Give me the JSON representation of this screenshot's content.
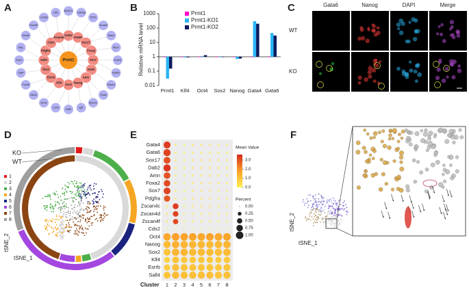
{
  "panel_labels": [
    "A",
    "B",
    "C",
    "D",
    "E",
    "F"
  ],
  "network": {
    "center": "Prmt1",
    "inner": [
      "Gata4",
      "Gata6",
      "Sox17",
      "Foxa2",
      "Sox7",
      "Dab2",
      "Amn",
      "Nanog",
      "Sox2",
      "Klf4",
      "Esrrb",
      "Tbx3",
      "Sall4",
      "Pdgfra",
      "Cdx2",
      "Zscan4c"
    ],
    "outer": [
      "Bcl2l11",
      "Cdk4ap",
      "Tcf7l1",
      "Smad4",
      "Tead1",
      "Mycn",
      "Kat2a",
      "Apbb2",
      "Notch1",
      "Chd8",
      "Ppp2r1",
      "Igf1",
      "Gdf3",
      "Ccnk",
      "Grnl2",
      "Med1",
      "Foxd3",
      "Fgf4",
      "Ezh2",
      "Myc",
      "Jarid2",
      "Dnmt3l",
      "Lin28a",
      "Utf1"
    ],
    "colors": {
      "center": "#f7941d",
      "inner": "#f28b82",
      "outer": "#a3a3f0"
    }
  },
  "chart_data": {
    "type": "bar",
    "ylabel": "Relative mRNA level",
    "categories": [
      "Prmt1",
      "Klf4",
      "Oct4",
      "Sox2",
      "Nanog",
      "Gata4",
      "Gata6"
    ],
    "category_colors": [
      "#2ca02c",
      "#222222",
      "#222222",
      "#222222",
      "#222222",
      "#e53935",
      "#e53935"
    ],
    "series": [
      {
        "name": "Prmt1",
        "color": "#ff00cc",
        "values": [
          1,
          1,
          1,
          1,
          1,
          1,
          1
        ]
      },
      {
        "name": "Prmt1-KO1",
        "color": "#29b6f6",
        "values": [
          0.03,
          0.9,
          1.1,
          1.0,
          0.7,
          300,
          45
        ]
      },
      {
        "name": "Prmt1-KO2",
        "color": "#0d1b5e",
        "values": [
          0.15,
          0.9,
          1.3,
          1.0,
          0.75,
          200,
          30
        ]
      }
    ],
    "ylim": [
      0.01,
      1000
    ],
    "yticks": [
      0.01,
      0.1,
      1,
      10,
      100,
      1000
    ],
    "log": true,
    "legend": "top-left"
  },
  "microscopy": {
    "channels": [
      {
        "name": "Gata6",
        "color": "#2ecc40"
      },
      {
        "name": "Nanog",
        "color": "#e53935"
      },
      {
        "name": "DAPI",
        "color": "#29a8e0"
      },
      {
        "name": "Merge",
        "color": "#b04ad0"
      }
    ],
    "rows": [
      "WT",
      "KO"
    ]
  },
  "tsne_d": {
    "clusters": [
      "1",
      "2",
      "3",
      "4",
      "5",
      "6",
      "7",
      "8"
    ],
    "cluster_colors": [
      "#e31a1c",
      "#d9d9d9",
      "#4daf4a",
      "#f5a623",
      "#1a237e",
      "#a347e0",
      "#8b4513",
      "#9e9e9e"
    ],
    "rings": [
      {
        "name": "KO",
        "fractions": [
          0.02,
          0.03,
          0.12,
          0.12,
          0.1,
          0.3,
          0.0,
          0.31
        ]
      },
      {
        "name": "WT",
        "fractions": [
          0.0,
          0.45,
          0.03,
          0.02,
          0.0,
          0.05,
          0.45,
          0.0
        ]
      }
    ],
    "xlabel": "tSNE_1",
    "ylabel": "tSNE_2"
  },
  "dot_plot": {
    "xlabel": "Cluster",
    "clusters": [
      "1",
      "2",
      "3",
      "4",
      "5",
      "6",
      "7",
      "8"
    ],
    "genes": [
      {
        "gene": "Gata4",
        "percent": [
          0.85,
          0.05,
          0.05,
          0.05,
          0.05,
          0.05,
          0.05,
          0.05
        ],
        "mean": [
          3.3,
          0.1,
          0.1,
          0.1,
          0.1,
          0.1,
          0.1,
          0.1
        ]
      },
      {
        "gene": "Gata6",
        "percent": [
          0.9,
          0.05,
          0.05,
          0.05,
          0.05,
          0.05,
          0.05,
          0.05
        ],
        "mean": [
          3.2,
          0.1,
          0.1,
          0.1,
          0.1,
          0.1,
          0.1,
          0.1
        ]
      },
      {
        "gene": "Sox17",
        "percent": [
          0.8,
          0.05,
          0.05,
          0.05,
          0.05,
          0.05,
          0.05,
          0.05
        ],
        "mean": [
          3.0,
          0.1,
          0.1,
          0.1,
          0.1,
          0.1,
          0.1,
          0.1
        ]
      },
      {
        "gene": "Dab2",
        "percent": [
          0.9,
          0.05,
          0.05,
          0.05,
          0.05,
          0.05,
          0.05,
          0.05
        ],
        "mean": [
          3.4,
          0.1,
          0.1,
          0.1,
          0.1,
          0.1,
          0.1,
          0.1
        ]
      },
      {
        "gene": "Amn",
        "percent": [
          0.75,
          0.05,
          0.05,
          0.05,
          0.05,
          0.05,
          0.05,
          0.05
        ],
        "mean": [
          3.0,
          0.1,
          0.1,
          0.1,
          0.1,
          0.1,
          0.1,
          0.1
        ]
      },
      {
        "gene": "Foxa2",
        "percent": [
          0.75,
          0.05,
          0.05,
          0.05,
          0.05,
          0.05,
          0.05,
          0.05
        ],
        "mean": [
          3.1,
          0.1,
          0.1,
          0.1,
          0.1,
          0.1,
          0.1,
          0.1
        ]
      },
      {
        "gene": "Sox7",
        "percent": [
          0.8,
          0.05,
          0.05,
          0.05,
          0.05,
          0.05,
          0.05,
          0.05
        ],
        "mean": [
          3.2,
          0.1,
          0.1,
          0.1,
          0.1,
          0.1,
          0.1,
          0.1
        ]
      },
      {
        "gene": "Pdgfra",
        "percent": [
          0.7,
          0.05,
          0.05,
          0.05,
          0.05,
          0.05,
          0.05,
          0.05
        ],
        "mean": [
          2.9,
          0.1,
          0.1,
          0.1,
          0.1,
          0.1,
          0.1,
          0.1
        ]
      },
      {
        "gene": "Zscan4c",
        "percent": [
          0.05,
          0.6,
          0.05,
          0.05,
          0.05,
          0.05,
          0.05,
          0.05
        ],
        "mean": [
          0.1,
          3.3,
          0.1,
          0.1,
          0.1,
          0.1,
          0.1,
          0.1
        ]
      },
      {
        "gene": "Zscan4d",
        "percent": [
          0.05,
          0.55,
          0.05,
          0.05,
          0.05,
          0.05,
          0.05,
          0.05
        ],
        "mean": [
          0.1,
          3.2,
          0.1,
          0.1,
          0.1,
          0.1,
          0.1,
          0.1
        ]
      },
      {
        "gene": "Zscan4f",
        "percent": [
          0.05,
          0.5,
          0.05,
          0.05,
          0.05,
          0.05,
          0.05,
          0.05
        ],
        "mean": [
          0.1,
          3.1,
          0.1,
          0.1,
          0.1,
          0.1,
          0.1,
          0.1
        ]
      },
      {
        "gene": "Cdx2",
        "percent": [
          0.02,
          0.02,
          0.02,
          0.02,
          0.02,
          0.02,
          0.02,
          0.02
        ],
        "mean": [
          0.05,
          0.05,
          0.05,
          0.05,
          0.05,
          0.05,
          0.05,
          0.05
        ]
      },
      {
        "gene": "Oct4",
        "percent": [
          0.95,
          1.0,
          1.0,
          1.0,
          1.0,
          1.0,
          1.0,
          1.0
        ],
        "mean": [
          1.6,
          1.8,
          1.7,
          1.7,
          1.6,
          1.7,
          1.6,
          1.7
        ]
      },
      {
        "gene": "Nanog",
        "percent": [
          0.9,
          0.95,
          0.95,
          0.95,
          0.95,
          0.95,
          0.95,
          0.95
        ],
        "mean": [
          1.2,
          1.4,
          1.3,
          1.3,
          1.3,
          1.2,
          1.2,
          1.3
        ]
      },
      {
        "gene": "Sox2",
        "percent": [
          0.85,
          0.95,
          0.95,
          0.95,
          0.95,
          0.95,
          0.95,
          0.95
        ],
        "mean": [
          1.0,
          1.3,
          1.3,
          1.2,
          1.2,
          1.2,
          1.1,
          1.2
        ]
      },
      {
        "gene": "Klf4",
        "percent": [
          0.6,
          0.8,
          0.75,
          0.75,
          0.75,
          0.75,
          0.7,
          0.75
        ],
        "mean": [
          0.7,
          1.0,
          0.9,
          0.9,
          0.9,
          0.9,
          0.8,
          0.9
        ]
      },
      {
        "gene": "Esrrb",
        "percent": [
          0.7,
          0.85,
          0.85,
          0.85,
          0.85,
          0.85,
          0.8,
          0.85
        ],
        "mean": [
          0.8,
          1.1,
          1.0,
          1.0,
          1.0,
          1.0,
          0.9,
          1.0
        ]
      },
      {
        "gene": "Sall4",
        "percent": [
          0.85,
          0.9,
          0.9,
          0.9,
          0.9,
          0.9,
          0.9,
          0.9
        ],
        "mean": [
          1.0,
          1.2,
          1.1,
          1.1,
          1.1,
          1.1,
          1.0,
          1.1
        ]
      }
    ],
    "color_title": "Mean Value",
    "color_lim": [
      0,
      3.6
    ],
    "color_ticks": [
      {
        "value": 0,
        "label": "0.0"
      },
      {
        "value": 1,
        "label": "1.0"
      },
      {
        "value": 2,
        "label": "2.0"
      },
      {
        "value": 3,
        "label": "3.0"
      }
    ],
    "size_title": "Percent",
    "size_ticks": [
      {
        "value": 0,
        "label": "0.00"
      },
      {
        "value": 0.25,
        "label": "0.25"
      },
      {
        "value": 0.5,
        "label": "0.50"
      },
      {
        "value": 0.75,
        "label": "0.75"
      },
      {
        "value": 1,
        "label": "1.00"
      }
    ]
  },
  "tsne_f": {
    "xlabel": "tSNE_1",
    "ylabel": "tSNE_2"
  }
}
